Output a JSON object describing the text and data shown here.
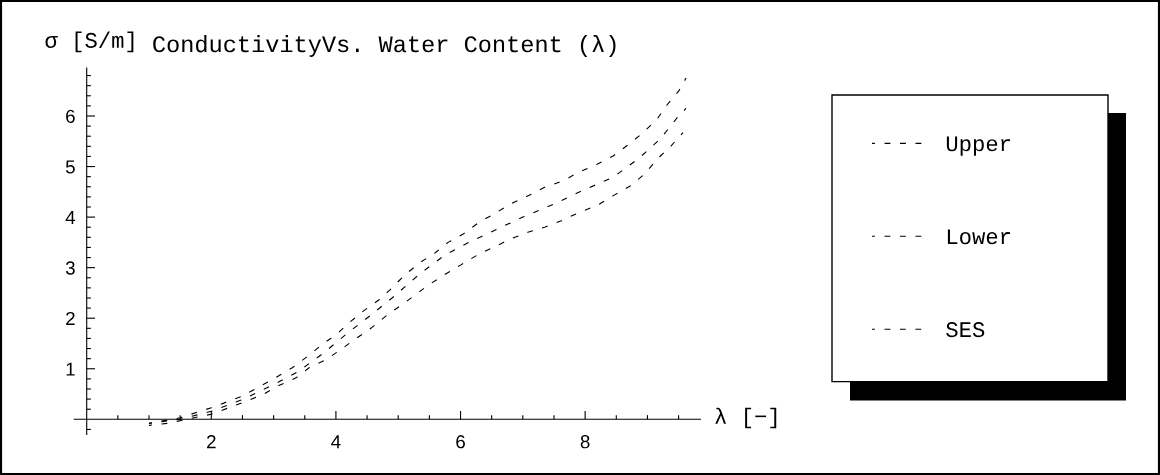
{
  "chart_data": {
    "type": "line",
    "title": "ConductivityVs. Water Content (λ)",
    "ylabel": "σ [S/m]",
    "xlabel": "λ [−]",
    "series": [
      {
        "name": "Upper",
        "color": "#000000",
        "line_style": "dashed",
        "x": [
          1.0,
          1.5,
          2.0,
          2.5,
          3.0,
          3.3,
          3.55,
          3.8,
          4.0,
          4.2,
          4.45,
          4.7,
          4.9,
          5.1,
          5.35,
          5.6,
          5.8,
          6.05,
          6.3,
          6.55,
          6.8,
          7.1,
          7.35,
          7.65,
          7.9,
          8.2,
          8.45,
          8.7,
          8.9,
          9.15,
          9.3,
          9.5,
          9.62
        ],
        "values": [
          -0.08,
          0.03,
          0.23,
          0.46,
          0.8,
          1.02,
          1.25,
          1.5,
          1.67,
          1.9,
          2.15,
          2.37,
          2.6,
          2.85,
          3.1,
          3.3,
          3.5,
          3.67,
          3.9,
          4.07,
          4.26,
          4.43,
          4.59,
          4.72,
          4.89,
          5.05,
          5.21,
          5.44,
          5.64,
          5.93,
          6.2,
          6.49,
          6.75
        ]
      },
      {
        "name": "Lower",
        "color": "#000000",
        "line_style": "dashed",
        "x": [
          1.0,
          1.3,
          1.6,
          2.0,
          2.5,
          2.83,
          3.07,
          3.36,
          3.57,
          3.84,
          4.08,
          4.29,
          4.56,
          4.83,
          5.04,
          5.25,
          5.49,
          5.73,
          6.0,
          6.27,
          6.54,
          6.81,
          7.08,
          7.35,
          7.62,
          7.92,
          8.19,
          8.46,
          8.73,
          8.95,
          9.16,
          9.38,
          9.57
        ],
        "values": [
          -0.12,
          -0.08,
          0.0,
          0.1,
          0.33,
          0.49,
          0.66,
          0.82,
          1.02,
          1.18,
          1.38,
          1.57,
          1.8,
          2.07,
          2.25,
          2.44,
          2.66,
          2.85,
          3.05,
          3.25,
          3.41,
          3.57,
          3.7,
          3.8,
          3.93,
          4.1,
          4.23,
          4.43,
          4.62,
          4.85,
          5.15,
          5.41,
          5.67
        ]
      },
      {
        "name": "SES",
        "color": "#000000",
        "line_style": "dashed",
        "x": [
          1.0,
          1.5,
          2.0,
          2.5,
          3.05,
          3.4,
          3.8,
          4.2,
          4.55,
          4.9,
          5.35,
          5.75,
          6.15,
          6.6,
          7.0,
          7.5,
          7.95,
          8.45,
          8.85,
          9.2,
          9.5,
          9.62
        ],
        "values": [
          -0.08,
          0.0,
          0.16,
          0.39,
          0.72,
          0.95,
          1.31,
          1.72,
          2.05,
          2.4,
          2.88,
          3.25,
          3.51,
          3.77,
          4.0,
          4.26,
          4.52,
          4.79,
          5.15,
          5.54,
          6.0,
          6.15
        ]
      }
    ],
    "xlim": [
      -0.2,
      9.85
    ],
    "ylim": [
      -0.3,
      6.95
    ],
    "xticks": [
      {
        "value": 0.5,
        "label": null
      },
      {
        "value": 1,
        "label": null
      },
      {
        "value": 1.5,
        "label": null
      },
      2,
      {
        "value": 2.5,
        "label": null
      },
      {
        "value": 3,
        "label": null
      },
      {
        "value": 3.5,
        "label": null
      },
      4,
      {
        "value": 4.5,
        "label": null
      },
      {
        "value": 5,
        "label": null
      },
      {
        "value": 5.5,
        "label": null
      },
      6,
      {
        "value": 6.5,
        "label": null
      },
      {
        "value": 7,
        "label": null
      },
      {
        "value": 7.5,
        "label": null
      },
      8,
      {
        "value": 8.5,
        "label": null
      },
      {
        "value": 9,
        "label": null
      },
      {
        "value": 9.5,
        "label": null
      }
    ],
    "yticks": [
      {
        "value": -0.2,
        "label": null
      },
      {
        "value": 0.2,
        "label": null
      },
      {
        "value": 0.4,
        "label": null
      },
      {
        "value": 0.6,
        "label": null
      },
      {
        "value": 0.8,
        "label": null
      },
      1,
      {
        "value": 1.2,
        "label": null
      },
      {
        "value": 1.4,
        "label": null
      },
      {
        "value": 1.6,
        "label": null
      },
      {
        "value": 1.8,
        "label": null
      },
      2,
      {
        "value": 2.2,
        "label": null
      },
      {
        "value": 2.4,
        "label": null
      },
      {
        "value": 2.6,
        "label": null
      },
      {
        "value": 2.8,
        "label": null
      },
      3,
      {
        "value": 3.2,
        "label": null
      },
      {
        "value": 3.4,
        "label": null
      },
      {
        "value": 3.6,
        "label": null
      },
      {
        "value": 3.8,
        "label": null
      },
      4,
      {
        "value": 4.2,
        "label": null
      },
      {
        "value": 4.4,
        "label": null
      },
      {
        "value": 4.6,
        "label": null
      },
      {
        "value": 4.8,
        "label": null
      },
      5,
      {
        "value": 5.2,
        "label": null
      },
      {
        "value": 5.4,
        "label": null
      },
      {
        "value": 5.6,
        "label": null
      },
      {
        "value": 5.8,
        "label": null
      },
      6,
      {
        "value": 6.2,
        "label": null
      },
      {
        "value": 6.4,
        "label": null
      },
      {
        "value": 6.6,
        "label": null
      },
      {
        "value": 6.8,
        "label": null
      }
    ],
    "grid": false,
    "legend": "right"
  }
}
